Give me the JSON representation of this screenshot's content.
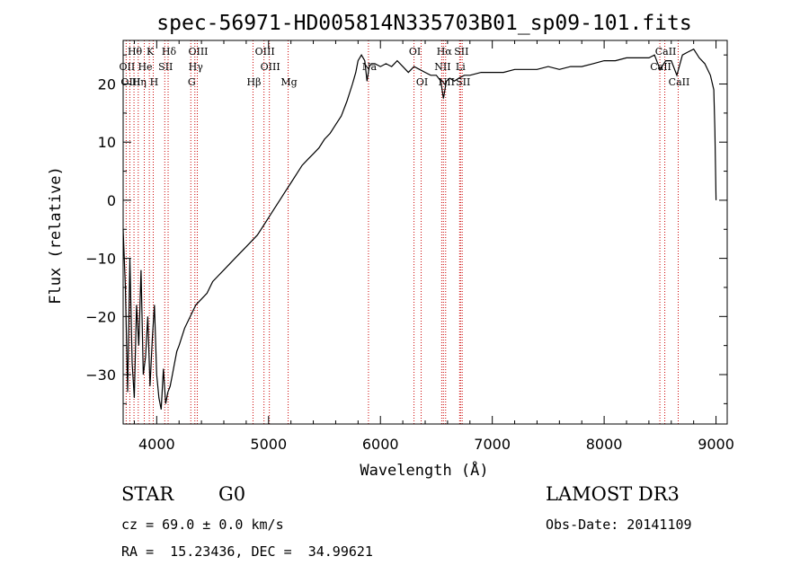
{
  "chart_data": {
    "type": "line",
    "title": "spec-56971-HD005814N335703B01_sp09-101.fits",
    "xlabel": "Wavelength (Å)",
    "ylabel": "Flux (relative)",
    "xlim": [
      3700,
      9100
    ],
    "ylim": [
      -38.5,
      27.5
    ],
    "xticks": [
      4000,
      5000,
      6000,
      7000,
      8000,
      9000
    ],
    "yticks": [
      -30,
      -20,
      -10,
      0,
      10,
      20
    ],
    "series": [
      {
        "name": "flux",
        "x": [
          3700,
          3720,
          3740,
          3760,
          3780,
          3800,
          3820,
          3840,
          3860,
          3880,
          3900,
          3920,
          3940,
          3960,
          3980,
          4000,
          4020,
          4040,
          4060,
          4080,
          4100,
          4120,
          4140,
          4160,
          4180,
          4200,
          4250,
          4300,
          4350,
          4400,
          4450,
          4500,
          4550,
          4600,
          4650,
          4700,
          4750,
          4800,
          4850,
          4900,
          4950,
          5000,
          5050,
          5100,
          5150,
          5200,
          5250,
          5300,
          5350,
          5400,
          5450,
          5500,
          5550,
          5600,
          5650,
          5700,
          5750,
          5780,
          5800,
          5830,
          5860,
          5880,
          5900,
          5920,
          5950,
          6000,
          6050,
          6100,
          6150,
          6200,
          6250,
          6300,
          6350,
          6400,
          6450,
          6500,
          6540,
          6563,
          6590,
          6620,
          6660,
          6700,
          6750,
          6800,
          6900,
          7000,
          7100,
          7200,
          7300,
          7400,
          7500,
          7600,
          7700,
          7800,
          7900,
          8000,
          8100,
          8200,
          8300,
          8400,
          8450,
          8500,
          8550,
          8600,
          8650,
          8700,
          8750,
          8800,
          8850,
          8900,
          8950,
          8980,
          8990,
          9000
        ],
        "y": [
          -5,
          -15,
          -33,
          -10,
          -28,
          -34,
          -18,
          -25,
          -12,
          -30,
          -27,
          -20,
          -32,
          -24,
          -18,
          -30,
          -34,
          -36,
          -29,
          -35,
          -33,
          -32,
          -30,
          -28,
          -26,
          -25,
          -22,
          -20,
          -18,
          -17,
          -16,
          -14,
          -13,
          -12,
          -11,
          -10,
          -9,
          -8,
          -7,
          -6,
          -4.5,
          -3,
          -1.5,
          0,
          1.5,
          3,
          4.5,
          6,
          7,
          8,
          9,
          10.5,
          11.5,
          13,
          14.5,
          17,
          20,
          22,
          24,
          25,
          24,
          20.5,
          23,
          23.5,
          23.5,
          23,
          23.5,
          23,
          24,
          23,
          22,
          23,
          22.5,
          22,
          21.5,
          21.5,
          20.5,
          17.5,
          20.5,
          21,
          20.5,
          21,
          21.5,
          21.5,
          22,
          22,
          22,
          22.5,
          22.5,
          22.5,
          23,
          22.5,
          23,
          23,
          23.5,
          24,
          24,
          24.5,
          24.5,
          24.5,
          25,
          22.5,
          24,
          24,
          21.5,
          25,
          25.5,
          26,
          24.5,
          23.5,
          21.5,
          19,
          12,
          0
        ]
      }
    ],
    "spectral_lines": [
      {
        "name": "Hθ",
        "wavelength": 3797,
        "row": 1
      },
      {
        "name": "OII",
        "wavelength": 3727,
        "row": 2
      },
      {
        "name": "OIII",
        "wavelength": 3760,
        "row": 3
      },
      {
        "name": "K",
        "wavelength": 3934,
        "row": 1
      },
      {
        "name": "He",
        "wavelength": 3889,
        "row": 2
      },
      {
        "name": "Hη",
        "wavelength": 3835,
        "row": 3
      },
      {
        "name": "Hδ",
        "wavelength": 4102,
        "row": 1
      },
      {
        "name": "SII",
        "wavelength": 4072,
        "row": 2
      },
      {
        "name": "H",
        "wavelength": 3969,
        "row": 3
      },
      {
        "name": "OIII",
        "wavelength": 4363,
        "row": 1
      },
      {
        "name": "Hγ",
        "wavelength": 4341,
        "row": 2
      },
      {
        "name": "G",
        "wavelength": 4305,
        "row": 3
      },
      {
        "name": "OIII",
        "wavelength": 4959,
        "row": 1
      },
      {
        "name": "OIII",
        "wavelength": 5007,
        "row": 2
      },
      {
        "name": "Hβ",
        "wavelength": 4861,
        "row": 3
      },
      {
        "name": "Mg",
        "wavelength": 5175,
        "row": 3
      },
      {
        "name": "Na",
        "wavelength": 5893,
        "row": 2
      },
      {
        "name": "OI",
        "wavelength": 6300,
        "row": 1
      },
      {
        "name": "OI",
        "wavelength": 6364,
        "row": 3
      },
      {
        "name": "Hα",
        "wavelength": 6563,
        "row": 1
      },
      {
        "name": "SII",
        "wavelength": 6716,
        "row": 1
      },
      {
        "name": "NII",
        "wavelength": 6548,
        "row": 2
      },
      {
        "name": "Li",
        "wavelength": 6708,
        "row": 2
      },
      {
        "name": "NII",
        "wavelength": 6583,
        "row": 3
      },
      {
        "name": "SII",
        "wavelength": 6731,
        "row": 3
      },
      {
        "name": "CaII",
        "wavelength": 8542,
        "row": 1
      },
      {
        "name": "CaII",
        "wavelength": 8498,
        "row": 2
      },
      {
        "name": "CaII",
        "wavelength": 8662,
        "row": 3
      }
    ],
    "line_color": "#000000",
    "marker_color": "#cc0000"
  },
  "info": {
    "class": "STAR",
    "subclass": "G0",
    "survey": "LAMOST DR3",
    "cz": "cz = 69.0 ± 0.0 km/s",
    "obsdate": "Obs-Date: 20141109",
    "radec": "RA =  15.23436, DEC =  34.99621"
  }
}
